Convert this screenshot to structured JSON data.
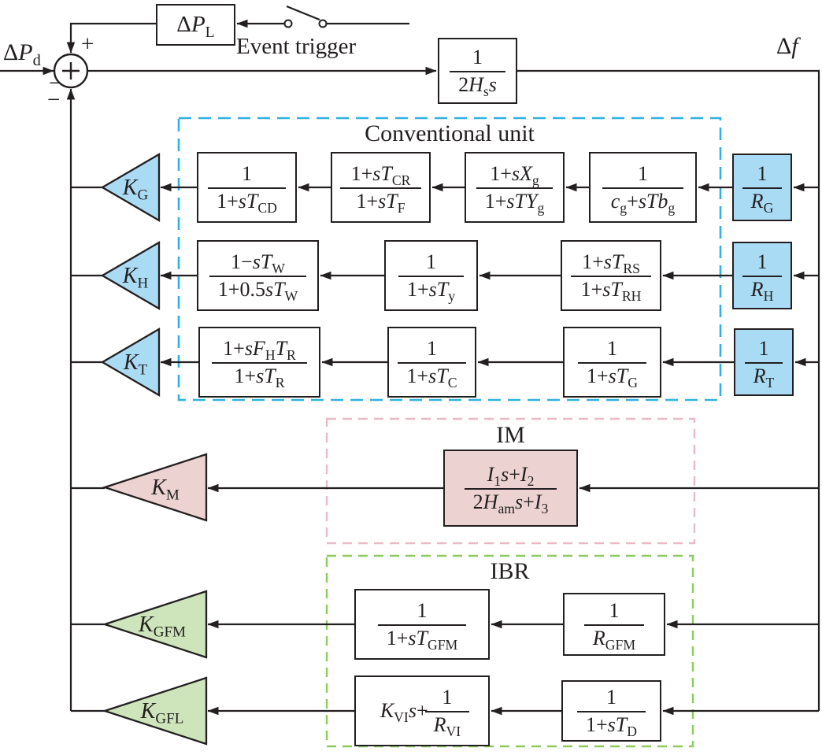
{
  "colors": {
    "line": "#231f20",
    "blue_fill": "#a9dcf4",
    "cyan_dash": "#2eb2e2",
    "pink_fill": "#ecd3d2",
    "pink_dash": "#e9bac5",
    "green_fill": "#cee5bb",
    "green_dash": "#8ecb5e"
  },
  "labels": {
    "input": "Δ*P*_{d}",
    "output": "Δ*f*",
    "event_block": "Δ*P*_{L}",
    "event_trigger": "Event trigger",
    "sign_top": "+",
    "sign_left": "−",
    "sign_bottom": "−"
  },
  "groups": {
    "conventional": "Conventional unit",
    "im": "IM",
    "ibr": "IBR"
  },
  "blocks": {
    "inertia": {
      "num": "1",
      "den": "2*H*_{s}*s*"
    },
    "tcd": {
      "num": "1",
      "den": "1+*sT*_{CD}"
    },
    "tcr": {
      "num": "1+*sT*_{CR}",
      "den": "1+*sT*_{F}"
    },
    "xg": {
      "num": "1+*sX*_{g}",
      "den": "1+*sTY*_{g}"
    },
    "cg": {
      "num": "1",
      "den": "*c*_{g}+*sTb*_{g}"
    },
    "rg": {
      "num": "1",
      "den": "*R*_{G}"
    },
    "tw": {
      "num": "1−*sT*_{W}",
      "den": "1+0.5*sT*_{W}"
    },
    "ty": {
      "num": "1",
      "den": "1+*sT*_{y}"
    },
    "trs": {
      "num": "1+*sT*_{RS}",
      "den": "1+*sT*_{RH}"
    },
    "rh": {
      "num": "1",
      "den": "*R*_{H}"
    },
    "fhtr": {
      "num": "1+*sF*_{H}*T*_{R}",
      "den": "1+*sT*_{R}"
    },
    "tc": {
      "num": "1",
      "den": "1+*sT*_{C}"
    },
    "tg": {
      "num": "1",
      "den": "1+*sT*_{G}"
    },
    "rt": {
      "num": "1",
      "den": "*R*_{T}"
    },
    "im": {
      "num": "*I*_{1}*s*+*I*_{2}",
      "den": "2*H*_{am}*s*+*I*_{3}"
    },
    "tgfm": {
      "num": "1",
      "den": "1+*sT*_{GFM}"
    },
    "rgfm": {
      "num": "1",
      "den": "*R*_{GFM}"
    },
    "kvi": {
      "prefix": "*K*_{VI}*s*+",
      "num": "1",
      "den": "*R*_{VI}"
    },
    "td": {
      "num": "1",
      "den": "1+*sT*_{D}"
    }
  },
  "gains": {
    "kg": "*K*_{G}",
    "kh": "*K*_{H}",
    "kt": "*K*_{T}",
    "km": "*K*_{M}",
    "kgfm": "*K*_{GFM}",
    "kgfl": "*K*_{GFL}"
  }
}
